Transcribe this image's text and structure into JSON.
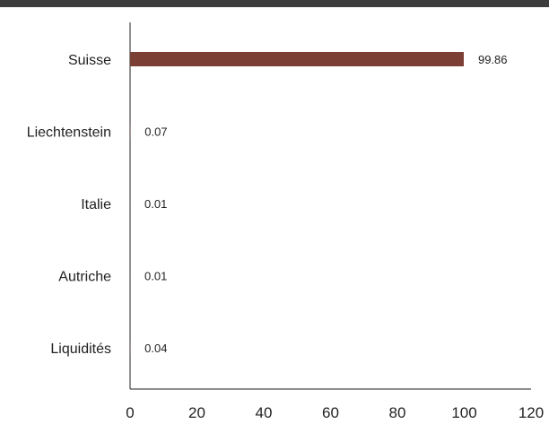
{
  "colors": {
    "bar": "#7b3f35",
    "axis": "#222222",
    "rule": "#3d3d3d"
  },
  "chart_data": {
    "type": "bar",
    "orientation": "horizontal",
    "categories": [
      "Suisse",
      "Liechtenstein",
      "Italie",
      "Autriche",
      "Liquidités"
    ],
    "values": [
      99.86,
      0.07,
      0.01,
      0.01,
      0.04
    ],
    "value_labels": [
      "99.86",
      "0.07",
      "0.01",
      "0.01",
      "0.04"
    ],
    "xlim": [
      0,
      120
    ],
    "xticks": [
      0,
      20,
      40,
      60,
      80,
      100,
      120
    ],
    "grid": false,
    "legend": "none"
  }
}
